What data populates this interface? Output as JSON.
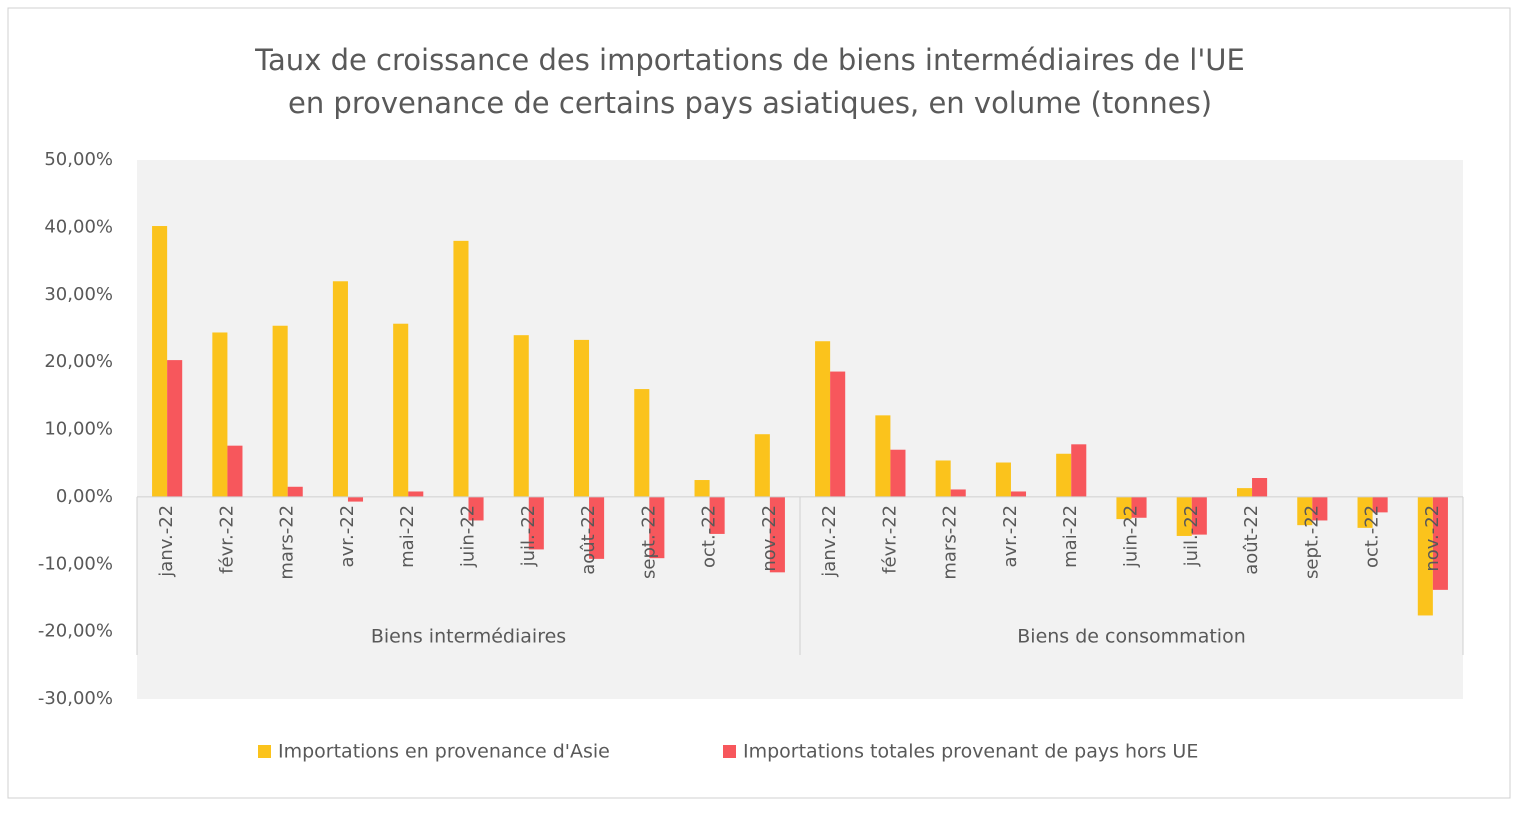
{
  "chart_data": {
    "type": "bar",
    "title": [
      "Taux de croissance des importations de biens intermédiaires de l'UE",
      "en provenance de certains pays asiatiques, en volume (tonnes)"
    ],
    "groups": [
      {
        "label": "Biens intermédiaires",
        "categories": [
          "janv.-22",
          "févr.-22",
          "mars-22",
          "avr.-22",
          "mai-22",
          "juin-22",
          "juil.-22",
          "août-22",
          "sept.-22",
          "oct.-22",
          "nov.-22"
        ]
      },
      {
        "label": "Biens de consommation",
        "categories": [
          "janv.-22",
          "févr.-22",
          "mars-22",
          "avr.-22",
          "mai-22",
          "juin-22",
          "juil.-22",
          "août-22",
          "sept.-22",
          "oct.-22",
          "nov.-22"
        ]
      }
    ],
    "series": [
      {
        "name": "Importations en provenance d'Asie",
        "color": "#fbc31c",
        "values": [
          40.2,
          24.4,
          25.4,
          32,
          25.7,
          38,
          24,
          23.3,
          16,
          2.5,
          9.3,
          23.1,
          12.1,
          5.4,
          5.1,
          6.4,
          -3.3,
          -5.8,
          1.3,
          -4.2,
          -4.6,
          -17.6
        ]
      },
      {
        "name": "Importations totales provenant de pays hors UE",
        "color": "#f7575c",
        "values": [
          20.3,
          7.6,
          1.5,
          -0.7,
          0.8,
          -3.5,
          -7.8,
          -9.2,
          -9.1,
          -5.5,
          -11.2,
          18.6,
          7,
          1.1,
          0.8,
          7.8,
          -3.1,
          -5.6,
          2.8,
          -3.5,
          -2.3,
          -13.8
        ]
      }
    ],
    "ylim": [
      -30,
      50
    ],
    "yticks": [
      {
        "value": -30,
        "label": "-30,00%"
      },
      {
        "value": -20,
        "label": "-20,00%"
      },
      {
        "value": -10,
        "label": "-10,00%"
      },
      {
        "value": 0,
        "label": "0,00%"
      },
      {
        "value": 10,
        "label": "10,00%"
      },
      {
        "value": 20,
        "label": "20,00%"
      },
      {
        "value": 30,
        "label": "30,00%"
      },
      {
        "value": 40,
        "label": "40,00%"
      },
      {
        "value": 50,
        "label": "50,00%"
      }
    ],
    "grid": false,
    "legend": "bottom"
  }
}
